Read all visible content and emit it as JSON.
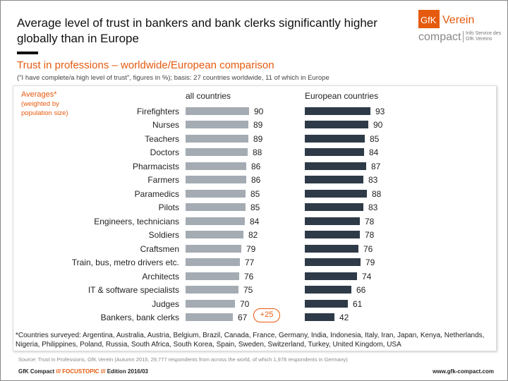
{
  "header": {
    "title": "Average level of trust in bankers and bank clerks significantly higher globally than in Europe",
    "subtitle": "Trust in professions – worldwide/European comparison",
    "note": "(\"I have complete/a high level of trust\", figures in %); basis: 27 countries worldwide, 11 of which in Europe"
  },
  "logo": {
    "brand": "GfK",
    "name": "Verein",
    "product": "compact",
    "tagline": "Info Service des GfK Vereins"
  },
  "colors": {
    "accent": "#e55a0e",
    "all_countries": "#a4abb3",
    "european": "#2e3a47"
  },
  "chart_data": {
    "type": "bar",
    "orientation": "horizontal",
    "averages_label": "Averages*",
    "averages_note": "(weighted by population size)",
    "categories": [
      "Firefighters",
      "Nurses",
      "Teachers",
      "Doctors",
      "Pharmacists",
      "Farmers",
      "Paramedics",
      "Pilots",
      "Engineers, technicians",
      "Soldiers",
      "Craftsmen",
      "Train, bus, metro drivers etc.",
      "Architects",
      "IT & software specialists",
      "Judges",
      "Bankers, bank clerks"
    ],
    "series": [
      {
        "name": "all countries",
        "values": [
          90,
          89,
          89,
          88,
          86,
          86,
          85,
          85,
          84,
          82,
          79,
          77,
          76,
          75,
          70,
          67
        ]
      },
      {
        "name": "European countries",
        "values": [
          93,
          90,
          85,
          84,
          87,
          83,
          88,
          83,
          78,
          78,
          76,
          79,
          74,
          66,
          61,
          42
        ]
      }
    ],
    "annotation": "+25"
  },
  "footnote": "*Countries surveyed: Argentina, Australia, Austria, Belgium, Brazil, Canada, France, Germany, India, Indonesia, Italy, Iran, Japan, Kenya, Netherlands, Nigeria, Philippines, Poland, Russia, South Africa, South Korea, Spain, Sweden, Switzerland, Turkey, United Kingdom, USA",
  "source": "Source: Trust in Professions, GfK Verein (Autumn 2015, 29,777 respondents from across the world, of which 1,978 respondents in Germany)",
  "footer": {
    "brand": "GfK Compact",
    "sep1": "///",
    "topic": "FOCUSTOPIC",
    "sep2": "///",
    "edition": "Edition 2016/03",
    "url": "www.gfk-compact.com"
  }
}
